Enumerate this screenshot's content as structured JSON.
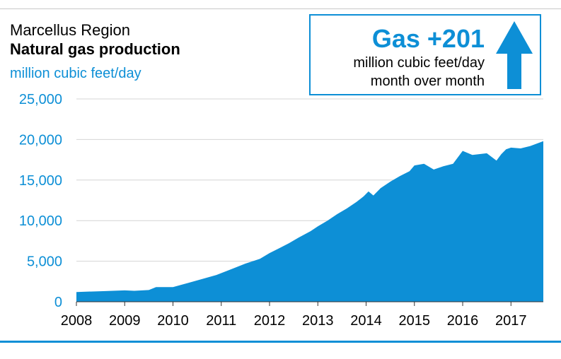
{
  "header": {
    "region": "Marcellus Region",
    "title": "Natural gas production",
    "unit": "million cubic feet/day"
  },
  "callout": {
    "headline": "Gas +201",
    "line1": "million cubic feet/day",
    "line2": "month over month",
    "direction": "up-arrow-icon"
  },
  "colors": {
    "accent": "#0d8fd6",
    "area": "#0d8fd6",
    "grid": "#d4d4d4",
    "axis_text": "#0d8fd6",
    "x_text": "#000000"
  },
  "chart_data": {
    "type": "area",
    "title": "Natural gas production",
    "ylabel": "million cubic feet/day",
    "ylim": [
      0,
      25000
    ],
    "yticks": [
      0,
      5000,
      10000,
      15000,
      20000,
      25000
    ],
    "ytick_labels": [
      "0",
      "5,000",
      "10,000",
      "15,000",
      "20,000",
      "25,000"
    ],
    "xlim": [
      2008.0,
      2017.67
    ],
    "xticks": [
      2008,
      2009,
      2010,
      2011,
      2012,
      2013,
      2014,
      2015,
      2016,
      2017
    ],
    "xtick_labels": [
      "2008",
      "2009",
      "2010",
      "2011",
      "2012",
      "2013",
      "2014",
      "2015",
      "2016",
      "2017"
    ],
    "grid": true,
    "series": [
      {
        "x": [
          2008.0,
          2008.5,
          2009.0,
          2009.2,
          2009.5,
          2009.65,
          2010.0,
          2010.3,
          2010.6,
          2010.9,
          2011.2,
          2011.5,
          2011.8,
          2012.0,
          2012.2,
          2012.4,
          2012.6,
          2012.85,
          2013.0,
          2013.2,
          2013.4,
          2013.6,
          2013.8,
          2013.95,
          2014.05,
          2014.15,
          2014.3,
          2014.5,
          2014.7,
          2014.9,
          2015.0,
          2015.2,
          2015.4,
          2015.6,
          2015.8,
          2016.0,
          2016.2,
          2016.5,
          2016.7,
          2016.8,
          2016.9,
          2017.0,
          2017.2,
          2017.4,
          2017.67
        ],
        "values": [
          1200,
          1300,
          1400,
          1350,
          1450,
          1800,
          1800,
          2300,
          2800,
          3300,
          4000,
          4700,
          5300,
          6000,
          6600,
          7200,
          7900,
          8700,
          9300,
          10000,
          10800,
          11500,
          12300,
          13000,
          13600,
          13100,
          14000,
          14800,
          15500,
          16100,
          16800,
          17000,
          16300,
          16700,
          17000,
          18600,
          18100,
          18300,
          17400,
          18200,
          18800,
          19000,
          18900,
          19200,
          19800
        ]
      }
    ]
  }
}
